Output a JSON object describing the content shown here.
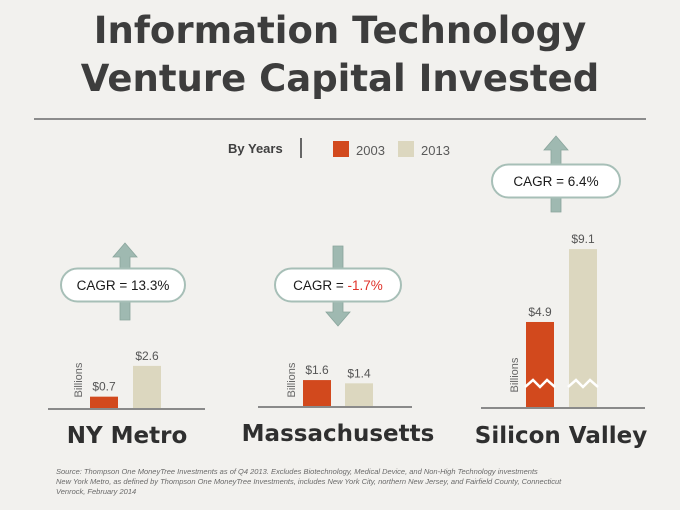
{
  "header": {
    "title_line1": "Information Technology",
    "title_line2": "Venture Capital Invested"
  },
  "legend": {
    "heading": "By Years",
    "items": [
      {
        "label": "2003",
        "color": "#d2491d"
      },
      {
        "label": "2013",
        "color": "#dcd7bf"
      }
    ]
  },
  "colors": {
    "bar_2003": "#d2491d",
    "bar_2013": "#dcd7bf",
    "arrow": "#9fb9b1",
    "negative_text": "#e0322a"
  },
  "chart_data": [
    {
      "type": "bar",
      "region": "NY Metro",
      "unit": "Billions",
      "categories": [
        "2003",
        "2013"
      ],
      "values": [
        0.7,
        2.6
      ],
      "value_labels": [
        "$0.7",
        "$2.6"
      ],
      "cagr_prefix": "CAGR = ",
      "cagr_value": "13.3%",
      "cagr_direction": "up"
    },
    {
      "type": "bar",
      "region": "Massachusetts",
      "unit": "Billions",
      "categories": [
        "2003",
        "2013"
      ],
      "values": [
        1.6,
        1.4
      ],
      "value_labels": [
        "$1.6",
        "$1.4"
      ],
      "cagr_prefix": "CAGR = ",
      "cagr_value": "-1.7%",
      "cagr_direction": "down"
    },
    {
      "type": "bar",
      "region": "Silicon Valley",
      "unit": "Billions",
      "categories": [
        "2003",
        "2013"
      ],
      "values": [
        4.9,
        9.1
      ],
      "value_labels": [
        "$4.9",
        "$9.1"
      ],
      "cagr_prefix": "CAGR = ",
      "cagr_value": "6.4%",
      "cagr_direction": "up",
      "axis_break": true
    }
  ],
  "footnote": {
    "line1": "Source: Thompson One MoneyTree Investments as of Q4 2013. Excludes Biotechnology, Medical Device, and Non-High Technology investments",
    "line2": "New York Metro, as defined by Thompson One MoneyTree Investments, includes New York City, northern New Jersey, and Fairfield County, Connecticut",
    "line3": "Venrock, February 2014"
  }
}
